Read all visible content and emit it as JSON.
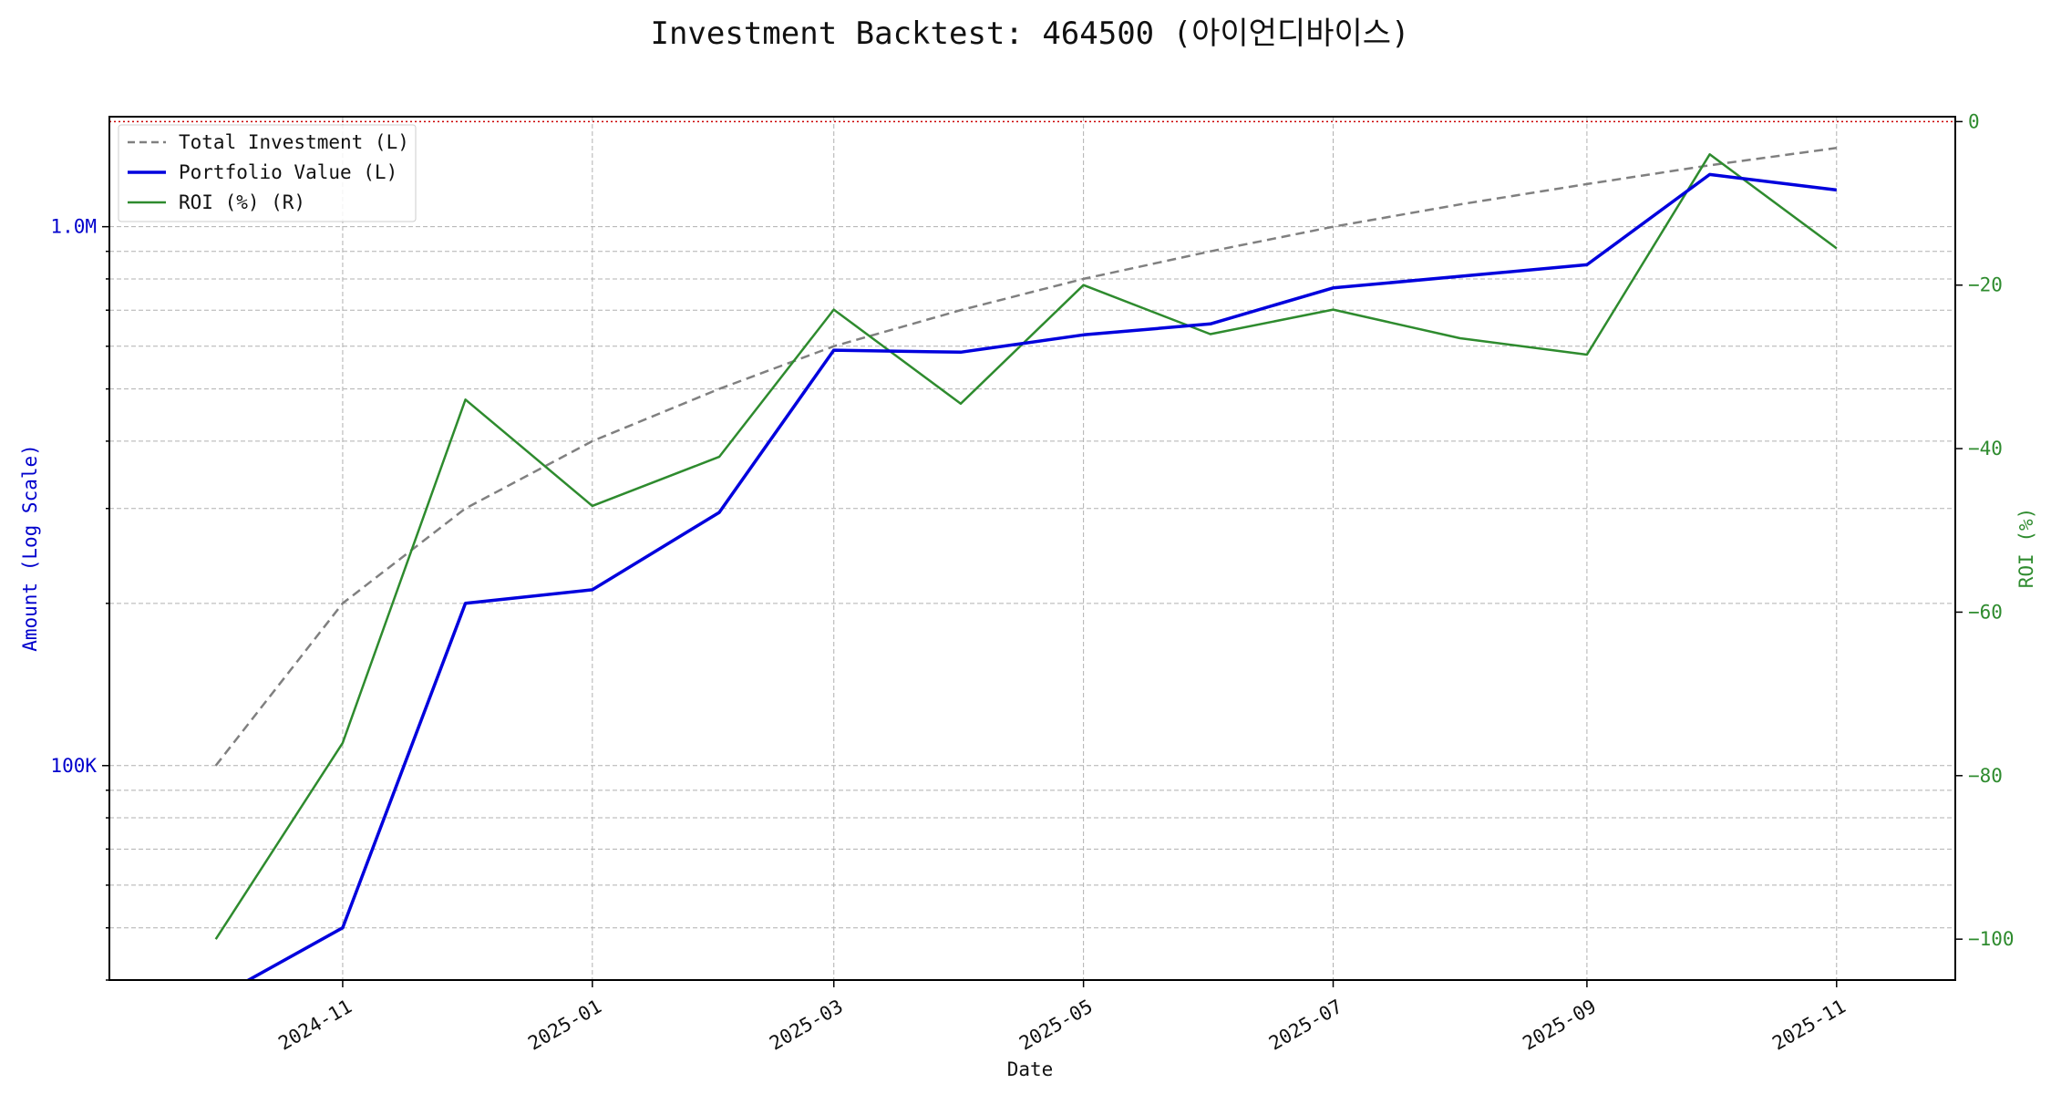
{
  "chart_data": {
    "type": "line",
    "title": "Investment Backtest: 464500 (아이언디바이스)",
    "xlabel": "Date",
    "ylabel_left": "Amount (Log Scale)",
    "ylabel_right": "ROI (%)",
    "left_axis": {
      "scale": "log",
      "range": [
        40000,
        1600000
      ],
      "major_ticks": [
        100000,
        1000000
      ],
      "major_tick_labels": [
        "100K",
        "1.0M"
      ]
    },
    "right_axis": {
      "scale": "linear",
      "range": [
        -105,
        0.6
      ],
      "ticks": [
        0,
        -20,
        -40,
        -60,
        -80,
        -100
      ]
    },
    "x_axis": {
      "range": [
        "2024-09-05",
        "2025-11-30"
      ],
      "ticks": [
        "2024-11",
        "2025-01",
        "2025-03",
        "2025-05",
        "2025-07",
        "2025-09",
        "2025-11"
      ]
    },
    "grid": true,
    "legend_position": "upper-left",
    "zero_reference_line": {
      "value": 0,
      "axis": "right",
      "color": "#cc0000",
      "style": "dotted"
    },
    "x": [
      "2024-10-01",
      "2024-11-01",
      "2024-12-01",
      "2025-01-01",
      "2025-02-01",
      "2025-03-01",
      "2025-04-01",
      "2025-05-01",
      "2025-06-01",
      "2025-07-01",
      "2025-08-01",
      "2025-09-01",
      "2025-10-01",
      "2025-11-01"
    ],
    "series": [
      {
        "name": "Total Investment (L)",
        "axis": "left",
        "color": "#808080",
        "style": "dashed",
        "values": [
          100000,
          200000,
          300000,
          400000,
          500000,
          600000,
          700000,
          800000,
          900000,
          1000000,
          1100000,
          1200000,
          1300000,
          1400000
        ]
      },
      {
        "name": "Portfolio Value (L)",
        "axis": "left",
        "color": "#0000dd",
        "style": "solid",
        "values": [
          0,
          50000,
          200000,
          212000,
          295000,
          590000,
          585000,
          630000,
          660000,
          770000,
          null,
          850000,
          1250000,
          1170000
        ]
      },
      {
        "name": "ROI (%) (R)",
        "axis": "right",
        "color": "#2e8b2e",
        "style": "solid",
        "values": [
          -100,
          -76,
          -34,
          -47,
          -41,
          -23,
          -34.5,
          -20,
          -26,
          -23,
          -26.5,
          -28.5,
          -4,
          -15.5
        ]
      }
    ]
  }
}
